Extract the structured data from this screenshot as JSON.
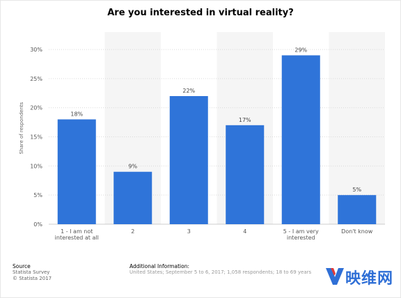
{
  "chart_data": {
    "type": "bar",
    "title": "Are you interested in virtual reality?",
    "ylabel": "Share of respondents",
    "xlabel": "",
    "categories": [
      [
        "1 - I am not",
        "interested at all"
      ],
      [
        "2"
      ],
      [
        "3"
      ],
      [
        "4"
      ],
      [
        "5 - I am very",
        "interested"
      ],
      [
        "Don't know"
      ]
    ],
    "values": [
      18,
      9,
      22,
      17,
      29,
      5
    ],
    "value_labels": [
      "18%",
      "9%",
      "22%",
      "17%",
      "29%",
      "5%"
    ],
    "yticks": [
      "0%",
      "5%",
      "10%",
      "15%",
      "20%",
      "25%",
      "30%"
    ],
    "ylim": [
      0,
      33
    ],
    "grid": true,
    "bar_color": "#2f74d9"
  },
  "footer": {
    "source_heading": "Source",
    "source_lines": [
      "Statista Survey",
      "© Statista 2017"
    ],
    "additional_heading": "Additional Information:",
    "additional_text": "United States; September 5 to 6, 2017; 1,058 respondents; 18 to 69 years"
  },
  "logo": {
    "text": "映维网",
    "color": "#2f6fd6",
    "accent": "#e03a3a"
  }
}
